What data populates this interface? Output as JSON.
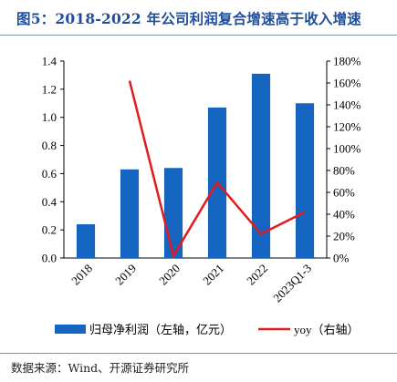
{
  "title": "图5：2018-2022 年公司利润复合增速高于收入增速",
  "source": "数据来源：Wind、开源证券研究所",
  "colors": {
    "bar": "#1565c0",
    "line": "#e41a1c",
    "title": "#1f4e9c"
  },
  "chart_data": {
    "type": "bar",
    "categories": [
      "2018",
      "2019",
      "2020",
      "2021",
      "2022",
      "2023Q1-3"
    ],
    "series": [
      {
        "name": "归母净利润（左轴，亿元）",
        "type": "bar",
        "axis": "left",
        "values": [
          0.24,
          0.63,
          0.64,
          1.07,
          1.31,
          1.1
        ]
      },
      {
        "name": "yoy（右轴）",
        "type": "line",
        "axis": "right",
        "values": [
          null,
          162,
          2,
          69,
          22,
          42
        ]
      }
    ],
    "left_axis": {
      "min": 0,
      "max": 1.4,
      "ticks": [
        "0.0",
        "0.2",
        "0.4",
        "0.6",
        "0.8",
        "1.0",
        "1.2",
        "1.4"
      ]
    },
    "right_axis": {
      "min": 0,
      "max": 180,
      "ticks": [
        "0%",
        "20%",
        "40%",
        "60%",
        "80%",
        "100%",
        "120%",
        "140%",
        "160%",
        "180%"
      ]
    },
    "grid": false,
    "legend_position": "bottom"
  }
}
